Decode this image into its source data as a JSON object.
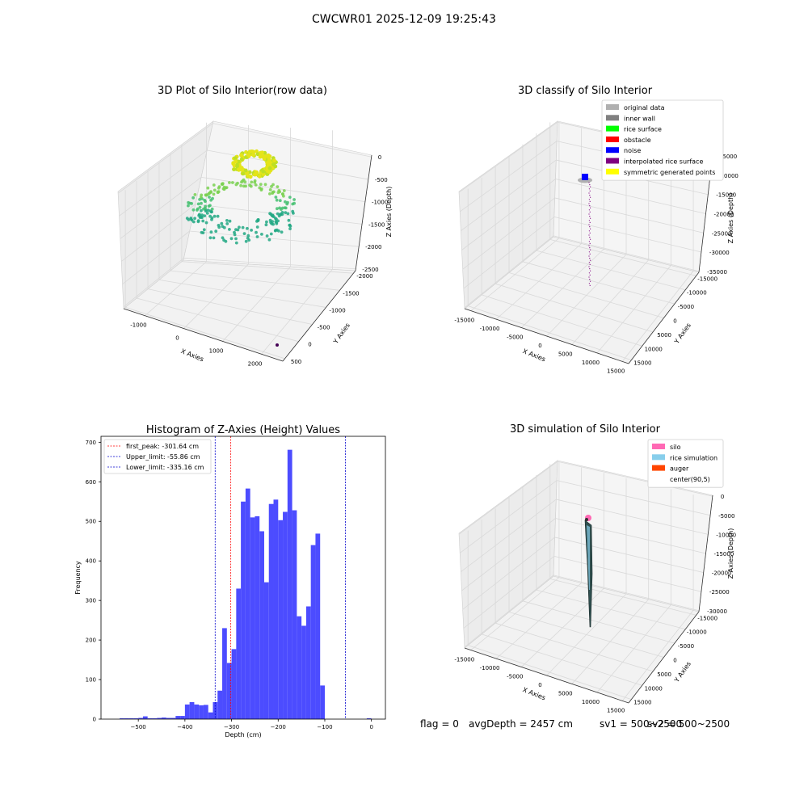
{
  "figure": {
    "suptitle": "CWCWR01 2025-12-09 19:25:43"
  },
  "status": {
    "flag": "flag = 0",
    "avg_depth": "avgDepth = 2457 cm",
    "sv1": "sv1 = 500~2500",
    "sv2": "sv2 = 500~2500"
  },
  "colors": {
    "histogram_bar": "#4c4cff",
    "first_peak_line": "#ff0000",
    "limit_lines": "#0000cc",
    "pane": "#f2f2f2",
    "grid": "#d9d9d9"
  },
  "chart_data": [
    {
      "type": "scatter",
      "projection": "3d",
      "title": "3D Plot of Silo Interior(row data)",
      "xlabel": "X Axies",
      "ylabel": "Y Axies",
      "zlabel": "Z Axies (Depth)",
      "xticks": [
        "-1000",
        "0",
        "1000",
        "2000"
      ],
      "yticks": [
        "500",
        "0",
        "-500",
        "-1000",
        "-1500",
        "-2000"
      ],
      "zticks": [
        "0",
        "-500",
        "-1000",
        "-1500",
        "-2000",
        "-2500"
      ],
      "xlim": [
        -1500,
        2500
      ],
      "ylim": [
        -2200,
        700
      ],
      "zlim": [
        -2700,
        100
      ],
      "grid": true,
      "series": [
        {
          "description_role": "rice points",
          "colormap": "viridis",
          "z_range": [
            -1800,
            -200
          ]
        },
        {
          "description_role": "single outlier",
          "points": [
            [
              2300,
              -2000,
              -2700
            ]
          ]
        }
      ]
    },
    {
      "type": "scatter",
      "projection": "3d",
      "title": "3D classify of Silo Interior",
      "xlabel": "X Axies",
      "ylabel": "Y Axies",
      "zlabel": "Z Axies (Depth)",
      "xticks": [
        "-15000",
        "-10000",
        "-5000",
        "0",
        "5000",
        "10000",
        "15000"
      ],
      "yticks": [
        "15000",
        "10000",
        "5000",
        "0",
        "-5000",
        "-10000",
        "-15000"
      ],
      "zticks": [
        "-5000",
        "-10000",
        "-15000",
        "-20000",
        "-25000",
        "-30000",
        "-35000"
      ],
      "grid": true,
      "legend_position": "top-right",
      "legend": [
        {
          "label": "original data",
          "color": "#b0b0b0"
        },
        {
          "label": "inner wall",
          "color": "#808080"
        },
        {
          "label": "rice surface",
          "color": "#00ff00"
        },
        {
          "label": "obstacle",
          "color": "#ff0000"
        },
        {
          "label": "noise",
          "color": "#0000ff"
        },
        {
          "label": "interpolated rice surface",
          "color": "#800080"
        },
        {
          "label": "symmetric generated points",
          "color": "#ffff00"
        }
      ]
    },
    {
      "type": "bar",
      "title": "Histogram of Z-Axies (Height) Values",
      "xlabel": "Depth (cm)",
      "ylabel": "Frequency",
      "xlim": [
        -580,
        30
      ],
      "ylim": [
        0,
        715
      ],
      "xticks": [
        "-500",
        "-400",
        "-300",
        "-200",
        "-100",
        "0"
      ],
      "yticks": [
        "0",
        "100",
        "200",
        "300",
        "400",
        "500",
        "600",
        "700"
      ],
      "bin_width": 10,
      "bins": [
        {
          "x": -540,
          "value": 2
        },
        {
          "x": -530,
          "value": 2
        },
        {
          "x": -520,
          "value": 2
        },
        {
          "x": -510,
          "value": 2
        },
        {
          "x": -500,
          "value": 3
        },
        {
          "x": -490,
          "value": 7
        },
        {
          "x": -480,
          "value": 2
        },
        {
          "x": -470,
          "value": 2
        },
        {
          "x": -460,
          "value": 3
        },
        {
          "x": -450,
          "value": 4
        },
        {
          "x": -440,
          "value": 3
        },
        {
          "x": -430,
          "value": 3
        },
        {
          "x": -420,
          "value": 8
        },
        {
          "x": -410,
          "value": 8
        },
        {
          "x": -400,
          "value": 37
        },
        {
          "x": -390,
          "value": 43
        },
        {
          "x": -380,
          "value": 37
        },
        {
          "x": -370,
          "value": 35
        },
        {
          "x": -360,
          "value": 36
        },
        {
          "x": -350,
          "value": 17
        },
        {
          "x": -340,
          "value": 43
        },
        {
          "x": -330,
          "value": 72
        },
        {
          "x": -320,
          "value": 230
        },
        {
          "x": -310,
          "value": 142
        },
        {
          "x": -300,
          "value": 177
        },
        {
          "x": -290,
          "value": 330
        },
        {
          "x": -280,
          "value": 550
        },
        {
          "x": -270,
          "value": 583
        },
        {
          "x": -260,
          "value": 510
        },
        {
          "x": -250,
          "value": 513
        },
        {
          "x": -240,
          "value": 475
        },
        {
          "x": -230,
          "value": 346
        },
        {
          "x": -220,
          "value": 544
        },
        {
          "x": -210,
          "value": 555
        },
        {
          "x": -200,
          "value": 503
        },
        {
          "x": -190,
          "value": 524
        },
        {
          "x": -180,
          "value": 681
        },
        {
          "x": -170,
          "value": 528
        },
        {
          "x": -160,
          "value": 260
        },
        {
          "x": -150,
          "value": 236
        },
        {
          "x": -140,
          "value": 285
        },
        {
          "x": -130,
          "value": 440
        },
        {
          "x": -120,
          "value": 469
        },
        {
          "x": -110,
          "value": 85
        },
        {
          "x": -10,
          "value": 2
        }
      ],
      "vlines": [
        {
          "label": "first_peak: -301.64 cm",
          "x": -301.64,
          "color": "#ff0000"
        },
        {
          "label": "Upper_limit: -55.86 cm",
          "x": -55.86,
          "color": "#0000cc"
        },
        {
          "label": "Lower_limit: -335.16 cm",
          "x": -335.16,
          "color": "#0000cc"
        }
      ],
      "legend_position": "top-left"
    },
    {
      "type": "scatter",
      "projection": "3d",
      "title": "3D simulation of Silo Interior",
      "xlabel": "X Axies",
      "ylabel": "Y Axies",
      "zlabel": "Z Axies (Depth)",
      "xticks": [
        "-15000",
        "-10000",
        "-5000",
        "0",
        "5000",
        "10000",
        "15000"
      ],
      "yticks": [
        "15000",
        "10000",
        "5000",
        "0",
        "-5000",
        "-10000",
        "-15000"
      ],
      "zticks": [
        "0",
        "-5000",
        "-10000",
        "-15000",
        "-20000",
        "-25000",
        "-30000"
      ],
      "grid": true,
      "legend_position": "top-right",
      "legend": [
        {
          "label": "silo",
          "color": "#ff69b4"
        },
        {
          "label": "rice simulation",
          "color": "#87ceeb"
        },
        {
          "label": "auger",
          "color": "#ff4500"
        },
        {
          "label": "center(90,5)",
          "color": "#ffffff"
        }
      ]
    }
  ]
}
